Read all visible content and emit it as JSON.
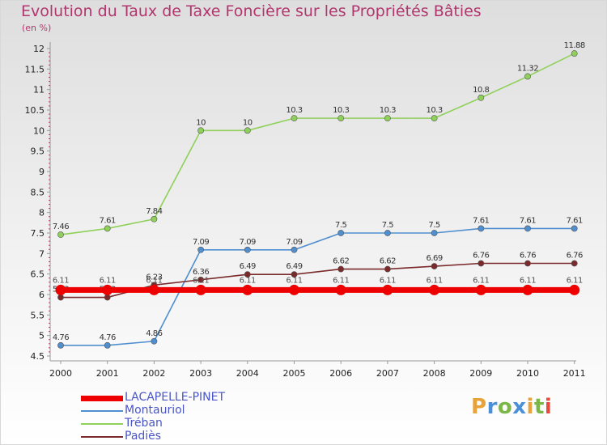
{
  "chart_data": {
    "type": "line",
    "title": "Evolution du Taux de Taxe Foncière sur les Propriétés Bâties",
    "ylabel": "(en %)",
    "xlabel": "",
    "ylim": [
      4.5,
      12
    ],
    "yticks": [
      "4.5",
      "5",
      "5.5",
      "6",
      "6.5",
      "7",
      "7.5",
      "8",
      "8.5",
      "9",
      "9.5",
      "10",
      "10.5",
      "11",
      "11.5",
      "12"
    ],
    "x": [
      "2000",
      "2001",
      "2002",
      "2003",
      "2004",
      "2005",
      "2006",
      "2007",
      "2008",
      "2009",
      "2010",
      "2011"
    ],
    "series": [
      {
        "name": "LACAPELLE-PINET",
        "color": "#ee0000",
        "values": [
          6.11,
          6.11,
          6.11,
          6.11,
          6.11,
          6.11,
          6.11,
          6.11,
          6.11,
          6.11,
          6.11,
          6.11
        ],
        "labels": [
          "6.11",
          "6.11",
          "6.11",
          "6.11",
          "6.11",
          "6.11",
          "6.11",
          "6.11",
          "6.11",
          "6.11",
          "6.11",
          "6.11"
        ]
      },
      {
        "name": "Montauriol",
        "color": "#4f8fd0",
        "values": [
          4.76,
          4.76,
          4.86,
          7.09,
          7.09,
          7.09,
          7.5,
          7.5,
          7.5,
          7.61,
          7.61,
          7.61
        ],
        "labels": [
          "4.76",
          "4.76",
          "4.86",
          "7.09",
          "7.09",
          "7.09",
          "7.5",
          "7.5",
          "7.5",
          "7.61",
          "7.61",
          "7.61"
        ]
      },
      {
        "name": "Tréban",
        "color": "#8fd05a",
        "values": [
          7.46,
          7.61,
          7.84,
          10,
          10,
          10.3,
          10.3,
          10.3,
          10.3,
          10.8,
          11.32,
          11.88
        ],
        "labels": [
          "7.46",
          "7.61",
          "7.84",
          "10",
          "10",
          "10.3",
          "10.3",
          "10.3",
          "10.3",
          "10.8",
          "11.32",
          "11.88"
        ]
      },
      {
        "name": "Padiès",
        "color": "#7a2a2a",
        "values": [
          5.93,
          5.93,
          6.23,
          6.36,
          6.49,
          6.49,
          6.62,
          6.62,
          6.69,
          6.76,
          6.76,
          6.76
        ],
        "labels": [
          "5.93",
          "5.93",
          "6.23",
          "6.36",
          "6.49",
          "6.49",
          "6.62",
          "6.62",
          "6.69",
          "6.76",
          "6.76",
          "6.76"
        ]
      }
    ],
    "grid": false,
    "legend_position": "bottom-left"
  },
  "branding": {
    "letters": [
      "P",
      "r",
      "o",
      "x",
      "i",
      "t",
      "i"
    ],
    "colors": [
      "#e8a23a",
      "#4a90d9",
      "#7ab648",
      "#4a90d9",
      "#e8a23a",
      "#7ab648",
      "#e84a3a"
    ]
  }
}
